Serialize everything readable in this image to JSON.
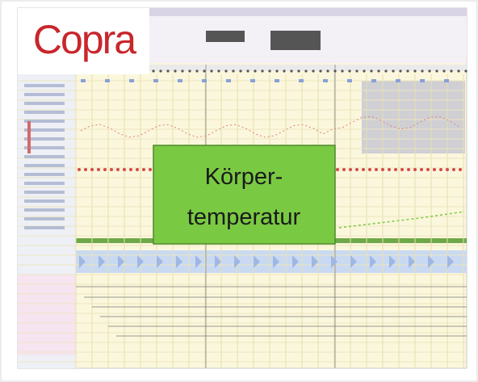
{
  "logo": "Copra",
  "label": {
    "line1": "Körper-",
    "line2": "temperatur"
  }
}
